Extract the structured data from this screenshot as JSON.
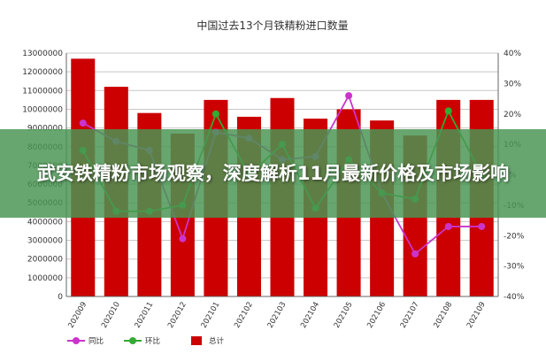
{
  "chart_data": {
    "type": "bar+line",
    "title": "中国过去13个月铁精粉进口数量",
    "categories": [
      "202009",
      "202010",
      "202011",
      "202012",
      "202101",
      "202102",
      "202103",
      "202104",
      "202105",
      "202106",
      "202107",
      "202108",
      "202109"
    ],
    "y_left": {
      "min": 0,
      "max": 13000000,
      "ticks": [
        "0",
        "1000000",
        "2000000",
        "3000000",
        "4000000",
        "5000000",
        "6000000",
        "7000000",
        "8000000",
        "9000000",
        "10000000",
        "11000000",
        "12000000",
        "13000000"
      ]
    },
    "y_right": {
      "min": -40,
      "max": 40,
      "ticks": [
        "-40%",
        "-30%",
        "-20%",
        "-10%",
        "0%",
        "10%",
        "20%",
        "30%",
        "40%"
      ]
    },
    "series": [
      {
        "name": "总计",
        "type": "bar",
        "axis": "left",
        "color": "#cc0000",
        "values": [
          12700000,
          11200000,
          9800000,
          8700000,
          10500000,
          9600000,
          10600000,
          9500000,
          10000000,
          9400000,
          8600000,
          10500000,
          10500000
        ]
      },
      {
        "name": "同比",
        "type": "line",
        "axis": "right",
        "color": "#cc33cc",
        "values": [
          17,
          11,
          8,
          -21,
          14,
          12,
          5,
          6,
          26,
          -6,
          -26,
          -17,
          -17
        ]
      },
      {
        "name": "环比",
        "type": "line",
        "axis": "right",
        "color": "#33aa33",
        "values": [
          8,
          -12,
          -12,
          -10,
          20,
          0,
          10,
          -11,
          5,
          -6,
          -8,
          21,
          0
        ]
      }
    ],
    "legend_position": "bottom",
    "grid": true
  },
  "overlay": {
    "headline": "武安铁精粉市场观察，深度解析11月最新价格及市场影响"
  }
}
